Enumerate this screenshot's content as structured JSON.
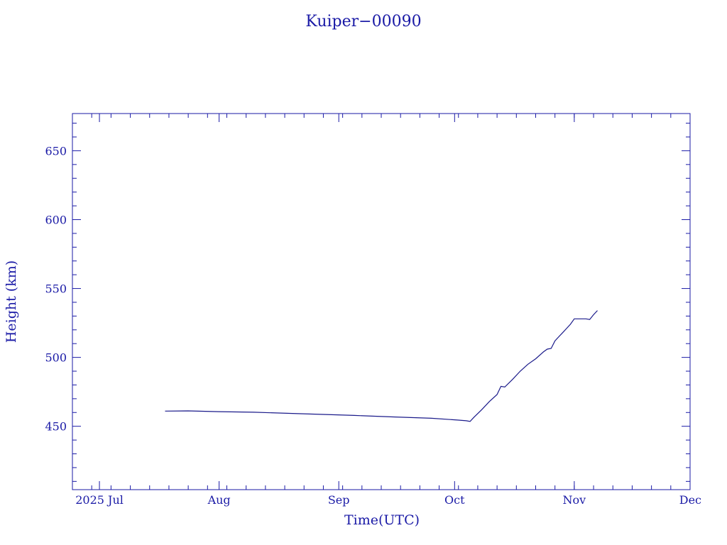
{
  "chart_data": {
    "type": "line",
    "title": "Kuiper−00090",
    "xlabel": "Time(UTC)",
    "ylabel": "Height (km)",
    "xlim": [
      "2025-06-24",
      "2025-12-01"
    ],
    "ylim": [
      404,
      677
    ],
    "x_ticks": [
      {
        "date": "2025-07-01",
        "label": "2025 Jul"
      },
      {
        "date": "2025-08-01",
        "label": "Aug"
      },
      {
        "date": "2025-09-01",
        "label": "Sep"
      },
      {
        "date": "2025-10-01",
        "label": "Oct"
      },
      {
        "date": "2025-11-01",
        "label": "Nov"
      },
      {
        "date": "2025-12-01",
        "label": "Dec"
      }
    ],
    "y_ticks": [
      450,
      500,
      550,
      600,
      650
    ],
    "grid": false,
    "series": [
      {
        "color": "#1a1a8a",
        "points": [
          {
            "x": "2025-07-18",
            "y": 461.0
          },
          {
            "x": "2025-07-24",
            "y": 461.2
          },
          {
            "x": "2025-08-01",
            "y": 460.6
          },
          {
            "x": "2025-08-10",
            "y": 460.2
          },
          {
            "x": "2025-08-20",
            "y": 459.3
          },
          {
            "x": "2025-08-28",
            "y": 458.6
          },
          {
            "x": "2025-09-05",
            "y": 457.9
          },
          {
            "x": "2025-09-15",
            "y": 456.8
          },
          {
            "x": "2025-09-25",
            "y": 455.8
          },
          {
            "x": "2025-10-02",
            "y": 454.5
          },
          {
            "x": "2025-10-04",
            "y": 454.0
          },
          {
            "x": "2025-10-05",
            "y": 453.5
          },
          {
            "x": "2025-10-06",
            "y": 456.5
          },
          {
            "x": "2025-10-08",
            "y": 462.0
          },
          {
            "x": "2025-10-10",
            "y": 468.0
          },
          {
            "x": "2025-10-12",
            "y": 473.0
          },
          {
            "x": "2025-10-13",
            "y": 479.0
          },
          {
            "x": "2025-10-14",
            "y": 478.5
          },
          {
            "x": "2025-10-16",
            "y": 484.0
          },
          {
            "x": "2025-10-18",
            "y": 490.0
          },
          {
            "x": "2025-10-20",
            "y": 495.0
          },
          {
            "x": "2025-10-22",
            "y": 499.0
          },
          {
            "x": "2025-10-24",
            "y": 504.0
          },
          {
            "x": "2025-10-25",
            "y": 506.0
          },
          {
            "x": "2025-10-26",
            "y": 506.5
          },
          {
            "x": "2025-10-27",
            "y": 512.0
          },
          {
            "x": "2025-10-28",
            "y": 515.0
          },
          {
            "x": "2025-10-29",
            "y": 518.0
          },
          {
            "x": "2025-10-30",
            "y": 521.0
          },
          {
            "x": "2025-10-31",
            "y": 524.0
          },
          {
            "x": "2025-11-01",
            "y": 528.0
          },
          {
            "x": "2025-11-02",
            "y": 528.0
          },
          {
            "x": "2025-11-03",
            "y": 528.0
          },
          {
            "x": "2025-11-04",
            "y": 528.0
          },
          {
            "x": "2025-11-05",
            "y": 527.5
          },
          {
            "x": "2025-11-06",
            "y": 531.0
          },
          {
            "x": "2025-11-07",
            "y": 534.0
          }
        ]
      }
    ]
  }
}
